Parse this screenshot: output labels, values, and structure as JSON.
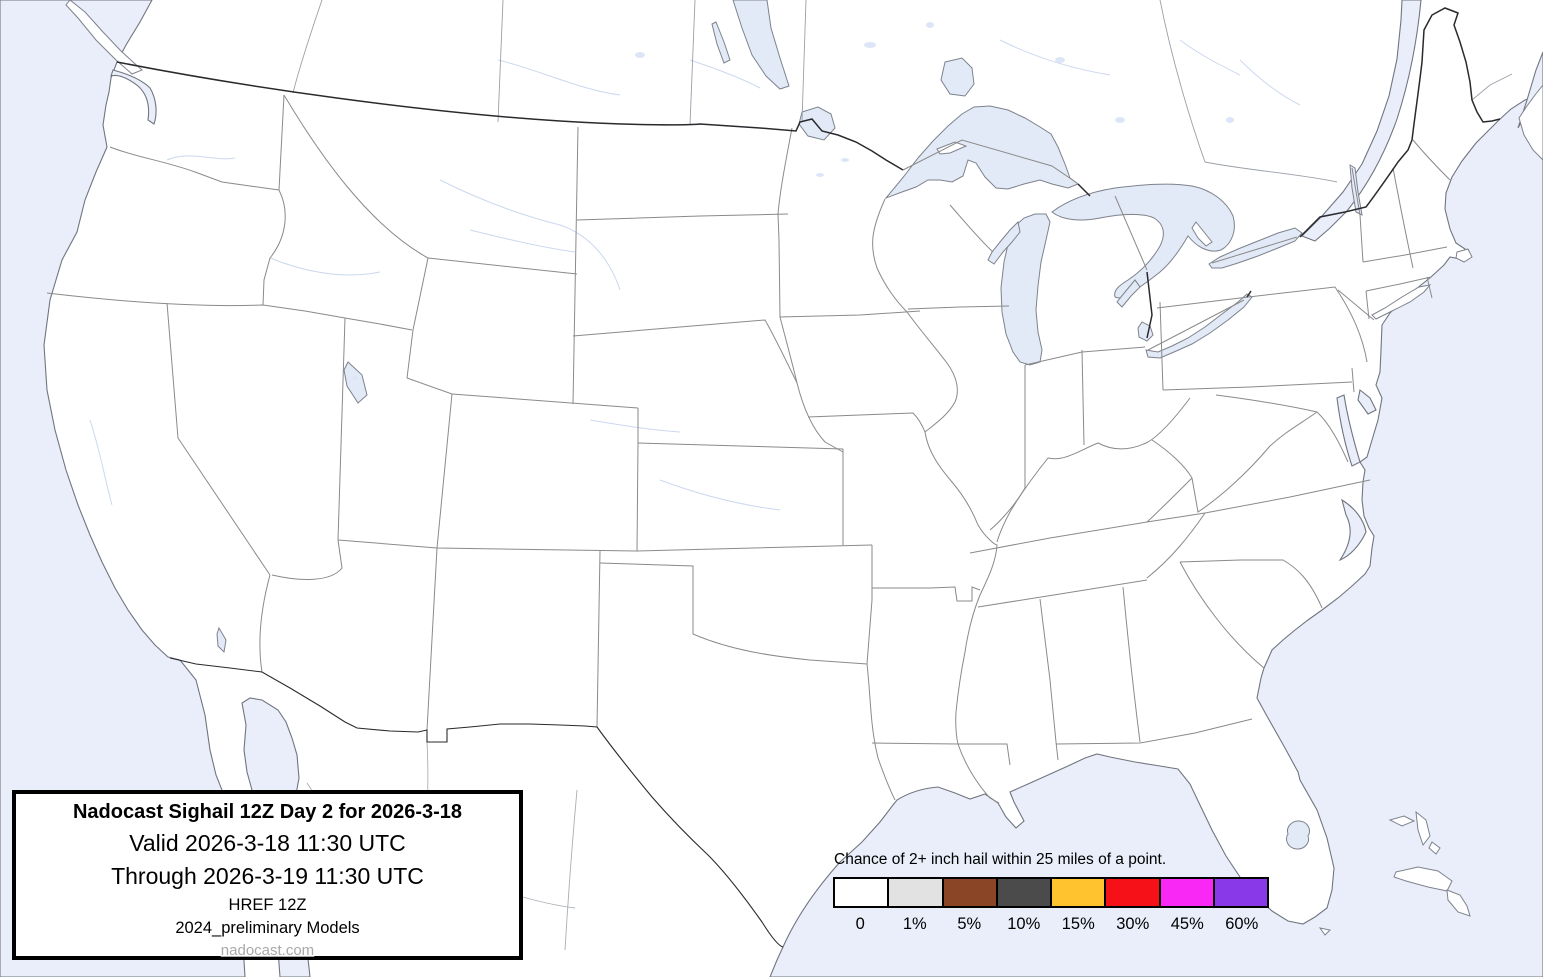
{
  "map": {
    "description": "Continental United States hail outlook map with state borders and Great Lakes",
    "water_color": "#e9eefa",
    "land_color": "#ffffff",
    "lake_color": "#e3eaf7"
  },
  "title_box": {
    "title": "Nadocast Sighail 12Z Day 2 for 2026-3-18",
    "valid": "Valid 2026-3-18 11:30 UTC",
    "through": "Through 2026-3-19 11:30 UTC",
    "model": "HREF 12Z",
    "models_note": "2024_preliminary Models",
    "website": "nadocast.com"
  },
  "legend": {
    "title": "Chance of 2+ inch hail within 25 miles of a point.",
    "items": [
      {
        "label": "0",
        "color": "#ffffff"
      },
      {
        "label": "1%",
        "color": "#e2e2e2"
      },
      {
        "label": "5%",
        "color": "#8a4527"
      },
      {
        "label": "10%",
        "color": "#4b4b4b"
      },
      {
        "label": "15%",
        "color": "#fec32f"
      },
      {
        "label": "30%",
        "color": "#f61118"
      },
      {
        "label": "45%",
        "color": "#fa28f4"
      },
      {
        "label": "60%",
        "color": "#8a39e8"
      }
    ]
  }
}
